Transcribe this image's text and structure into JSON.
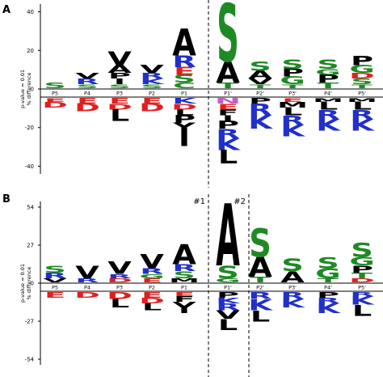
{
  "chart_data": [
    {
      "type": "logo",
      "panel_label": "A",
      "ylabel": [
        "p-value = 0.01",
        "% difference"
      ],
      "ylim": [
        -44,
        44
      ],
      "yticks": [
        40,
        20,
        0,
        -20,
        -40
      ],
      "categories": [
        "P5",
        "P4",
        "P3",
        "P2",
        "P1",
        "P1'",
        "P2'",
        "P3'",
        "P4'",
        "P5'"
      ],
      "annotations": [],
      "positions": [
        {
          "above": [
            {
              "letter": "S",
              "value": 3
            }
          ],
          "below": [
            {
              "letter": "E",
              "value": 2
            },
            {
              "letter": "D",
              "value": 3
            }
          ]
        },
        {
          "above": [
            {
              "letter": "S",
              "value": 2
            },
            {
              "letter": "R",
              "value": 3
            },
            {
              "letter": "V",
              "value": 3
            }
          ],
          "below": [
            {
              "letter": "E",
              "value": 3
            },
            {
              "letter": "D",
              "value": 4
            }
          ]
        },
        {
          "above": [
            {
              "letter": "S",
              "value": 2
            },
            {
              "letter": "I",
              "value": 3
            },
            {
              "letter": "P",
              "value": 3
            },
            {
              "letter": "A",
              "value": 4
            },
            {
              "letter": "V",
              "value": 7
            }
          ],
          "below": [
            {
              "letter": "E",
              "value": 3
            },
            {
              "letter": "D",
              "value": 3
            },
            {
              "letter": "L",
              "value": 6
            }
          ]
        },
        {
          "above": [
            {
              "letter": "S",
              "value": 2
            },
            {
              "letter": "K",
              "value": 3
            },
            {
              "letter": "R",
              "value": 3
            },
            {
              "letter": "V",
              "value": 4
            }
          ],
          "below": [
            {
              "letter": "E",
              "value": 3
            },
            {
              "letter": "D",
              "value": 4
            }
          ]
        },
        {
          "above": [
            {
              "letter": "C",
              "value": 3
            },
            {
              "letter": "S",
              "value": 4
            },
            {
              "letter": "E",
              "value": 4
            },
            {
              "letter": "R",
              "value": 6
            },
            {
              "letter": "A",
              "value": 14
            }
          ],
          "below": [
            {
              "letter": "K",
              "value": 3
            },
            {
              "letter": "D",
              "value": 3
            },
            {
              "letter": "L",
              "value": 3
            },
            {
              "letter": "P",
              "value": 4
            },
            {
              "letter": "Y",
              "value": 4
            },
            {
              "letter": "I",
              "value": 8
            }
          ]
        },
        {
          "above": [
            {
              "letter": "T",
              "value": 3
            },
            {
              "letter": "A",
              "value": 11
            },
            {
              "letter": "S",
              "value": 30
            }
          ],
          "below": [
            {
              "letter": "N",
              "value": 3
            },
            {
              "letter": "E",
              "value": 3
            },
            {
              "letter": "F",
              "value": 3
            },
            {
              "letter": "I",
              "value": 3
            },
            {
              "letter": "P",
              "value": 4
            },
            {
              "letter": "R",
              "value": 5
            },
            {
              "letter": "K",
              "value": 6
            },
            {
              "letter": "L",
              "value": 7
            }
          ]
        },
        {
          "above": [
            {
              "letter": "T",
              "value": 2
            },
            {
              "letter": "V",
              "value": 3
            },
            {
              "letter": "A",
              "value": 4
            },
            {
              "letter": "S",
              "value": 5
            }
          ],
          "below": [
            {
              "letter": "P",
              "value": 3
            },
            {
              "letter": "R",
              "value": 6
            },
            {
              "letter": "K",
              "value": 7
            }
          ]
        },
        {
          "above": [
            {
              "letter": "T",
              "value": 2
            },
            {
              "letter": "G",
              "value": 4
            },
            {
              "letter": "P",
              "value": 4
            },
            {
              "letter": "S",
              "value": 5
            }
          ],
          "below": [
            {
              "letter": "E",
              "value": 2
            },
            {
              "letter": "M",
              "value": 3
            },
            {
              "letter": "L",
              "value": 4
            },
            {
              "letter": "R",
              "value": 5
            },
            {
              "letter": "K",
              "value": 6
            }
          ]
        },
        {
          "above": [
            {
              "letter": "T",
              "value": 3
            },
            {
              "letter": "P",
              "value": 4
            },
            {
              "letter": "G",
              "value": 3
            },
            {
              "letter": "S",
              "value": 5
            }
          ],
          "below": [
            {
              "letter": "M",
              "value": 2
            },
            {
              "letter": "L",
              "value": 4
            },
            {
              "letter": "R",
              "value": 5
            },
            {
              "letter": "K",
              "value": 6
            }
          ]
        },
        {
          "above": [
            {
              "letter": "T",
              "value": 2
            },
            {
              "letter": "S",
              "value": 3
            },
            {
              "letter": "D",
              "value": 3
            },
            {
              "letter": "G",
              "value": 4
            },
            {
              "letter": "P",
              "value": 5
            }
          ],
          "below": [
            {
              "letter": "M",
              "value": 2
            },
            {
              "letter": "L",
              "value": 4
            },
            {
              "letter": "R",
              "value": 5
            },
            {
              "letter": "K",
              "value": 6
            }
          ]
        }
      ]
    },
    {
      "type": "logo",
      "panel_label": "B",
      "ylabel": [
        "p-value = 0.01",
        "% difference"
      ],
      "ylim": [
        -58,
        58
      ],
      "yticks": [
        54,
        27,
        0,
        -27,
        -54
      ],
      "categories": [
        "P5",
        "P4",
        "P3",
        "P2",
        "P1",
        "P1'",
        "P2'",
        "P3'",
        "P4'",
        "P5'"
      ],
      "annotations": [
        "#1",
        "#2"
      ],
      "positions": [
        {
          "above": [
            {
              "letter": "V",
              "value": 3
            },
            {
              "letter": "R",
              "value": 4
            },
            {
              "letter": "S",
              "value": 5
            }
          ],
          "below": [
            {
              "letter": "E",
              "value": 4
            }
          ]
        },
        {
          "above": [
            {
              "letter": "R",
              "value": 3
            },
            {
              "letter": "V",
              "value": 9
            }
          ],
          "below": [
            {
              "letter": "D",
              "value": 4
            }
          ]
        },
        {
          "above": [
            {
              "letter": "D",
              "value": 3
            },
            {
              "letter": "R",
              "value": 3
            },
            {
              "letter": "V",
              "value": 9
            }
          ],
          "below": [
            {
              "letter": "D",
              "value": 5
            },
            {
              "letter": "L",
              "value": 6
            }
          ]
        },
        {
          "above": [
            {
              "letter": "E",
              "value": 3
            },
            {
              "letter": "G",
              "value": 3
            },
            {
              "letter": "R",
              "value": 4
            },
            {
              "letter": "V",
              "value": 10
            }
          ],
          "below": [
            {
              "letter": "E",
              "value": 4
            },
            {
              "letter": "D",
              "value": 4
            },
            {
              "letter": "L",
              "value": 5
            }
          ]
        },
        {
          "above": [
            {
              "letter": "M",
              "value": 3
            },
            {
              "letter": "S",
              "value": 5
            },
            {
              "letter": "R",
              "value": 5
            },
            {
              "letter": "A",
              "value": 14
            }
          ],
          "below": [
            {
              "letter": "E",
              "value": 3
            },
            {
              "letter": "F",
              "value": 4
            },
            {
              "letter": "V",
              "value": 4
            },
            {
              "letter": "I",
              "value": 4
            }
          ]
        },
        {
          "above": [
            {
              "letter": "G",
              "value": 3
            },
            {
              "letter": "S",
              "value": 9
            },
            {
              "letter": "A",
              "value": 44
            }
          ],
          "below": [
            {
              "letter": "P",
              "value": 4
            },
            {
              "letter": "K",
              "value": 4
            },
            {
              "letter": "R",
              "value": 5
            },
            {
              "letter": "V",
              "value": 6
            },
            {
              "letter": "L",
              "value": 8
            }
          ]
        },
        {
          "above": [
            {
              "letter": "T",
              "value": 4
            },
            {
              "letter": "A",
              "value": 14
            },
            {
              "letter": "S",
              "value": 20
            }
          ],
          "below": [
            {
              "letter": "R",
              "value": 5
            },
            {
              "letter": "K",
              "value": 8
            },
            {
              "letter": "L",
              "value": 8
            }
          ]
        },
        {
          "above": [
            {
              "letter": "A",
              "value": 8
            },
            {
              "letter": "S",
              "value": 9
            }
          ],
          "below": [
            {
              "letter": "R",
              "value": 5
            },
            {
              "letter": "K",
              "value": 6
            }
          ]
        },
        {
          "above": [
            {
              "letter": "T",
              "value": 3
            },
            {
              "letter": "G",
              "value": 7
            },
            {
              "letter": "S",
              "value": 8
            }
          ],
          "below": [
            {
              "letter": "P",
              "value": 4
            },
            {
              "letter": "R",
              "value": 4
            },
            {
              "letter": "K",
              "value": 7
            }
          ]
        },
        {
          "above": [
            {
              "letter": "D",
              "value": 3
            },
            {
              "letter": "T",
              "value": 4
            },
            {
              "letter": "P",
              "value": 5
            },
            {
              "letter": "G",
              "value": 6
            },
            {
              "letter": "S",
              "value": 10
            }
          ],
          "below": [
            {
              "letter": "R",
              "value": 3
            },
            {
              "letter": "K",
              "value": 6
            },
            {
              "letter": "L",
              "value": 8
            }
          ]
        }
      ]
    }
  ],
  "letter_colors": {
    "S": "#1e8a24",
    "T": "#1e8a24",
    "G": "#1e8a24",
    "C": "#1e8a24",
    "R": "#2030c8",
    "K": "#2030c8",
    "H": "#2030c8",
    "D": "#e02020",
    "E": "#e02020",
    "N": "#c060c0",
    "Q": "#c060c0",
    "A": "#000000",
    "V": "#000000",
    "L": "#000000",
    "I": "#000000",
    "P": "#000000",
    "F": "#000000",
    "M": "#000000",
    "Y": "#000000",
    "W": "#000000"
  }
}
